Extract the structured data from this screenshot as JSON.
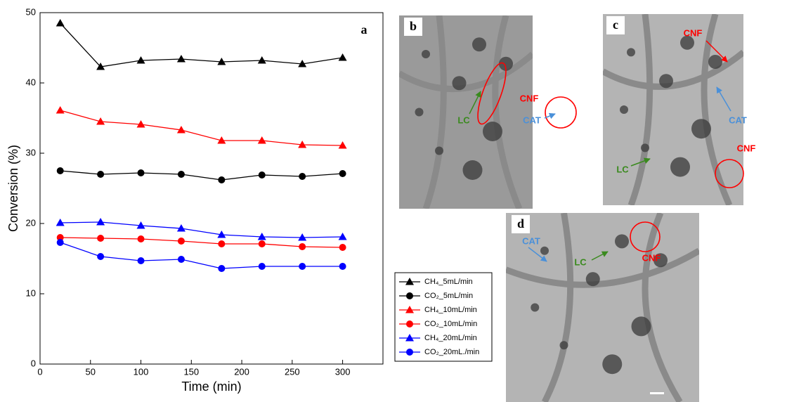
{
  "chart_data": {
    "type": "line",
    "panel_label": "a",
    "x_label": "Time (min)",
    "y_label": "Conversion (%)",
    "x": [
      20,
      60,
      100,
      140,
      180,
      220,
      260,
      300
    ],
    "xlim": [
      0,
      340
    ],
    "xticks": [
      0,
      50,
      100,
      150,
      200,
      250,
      300
    ],
    "ylim": [
      0,
      50
    ],
    "yticks": [
      0,
      10,
      20,
      30,
      40,
      50
    ],
    "legend": "lower right",
    "series": [
      {
        "name": "CH₄_5mL/min",
        "color": "#000000",
        "marker": "triangle",
        "values": [
          48.5,
          42.3,
          43.2,
          43.4,
          43.0,
          43.2,
          42.7,
          43.6
        ]
      },
      {
        "name": "CO₂_5mL/min",
        "color": "#000000",
        "marker": "circle",
        "values": [
          27.5,
          27.0,
          27.2,
          27.0,
          26.2,
          26.9,
          26.7,
          27.1
        ]
      },
      {
        "name": "CH₄_10mL/min",
        "color": "#ff0000",
        "marker": "triangle",
        "values": [
          36.1,
          34.5,
          34.1,
          33.3,
          31.8,
          31.8,
          31.2,
          31.1
        ]
      },
      {
        "name": "CO₂_10mL/min",
        "color": "#ff0000",
        "marker": "circle",
        "values": [
          18.0,
          17.9,
          17.8,
          17.5,
          17.1,
          17.1,
          16.7,
          16.6
        ]
      },
      {
        "name": "CH₄_20mL/min",
        "color": "#0000ff",
        "marker": "triangle",
        "values": [
          20.1,
          20.2,
          19.7,
          19.3,
          18.4,
          18.1,
          18.0,
          18.1
        ]
      },
      {
        "name": "CO₂_20mL./min",
        "color": "#0000ff",
        "marker": "circle",
        "values": [
          17.3,
          15.3,
          14.7,
          14.9,
          13.6,
          13.9,
          13.9,
          13.9
        ]
      }
    ]
  },
  "micrographs": [
    {
      "label": "b",
      "annotations": [
        {
          "text": "LC",
          "color": "#3a8a1e"
        },
        {
          "text": "CNF",
          "color": "#ff0000"
        },
        {
          "text": "CAT",
          "color": "#4a90d9"
        }
      ]
    },
    {
      "label": "c",
      "annotations": [
        {
          "text": "CNF",
          "color": "#ff0000"
        },
        {
          "text": "CAT",
          "color": "#4a90d9"
        },
        {
          "text": "CNF",
          "color": "#ff0000"
        },
        {
          "text": "LC",
          "color": "#3a8a1e"
        }
      ]
    },
    {
      "label": "d",
      "annotations": [
        {
          "text": "CAT",
          "color": "#4a90d9"
        },
        {
          "text": "LC",
          "color": "#3a8a1e"
        },
        {
          "text": "CNF",
          "color": "#ff0000"
        }
      ]
    }
  ]
}
